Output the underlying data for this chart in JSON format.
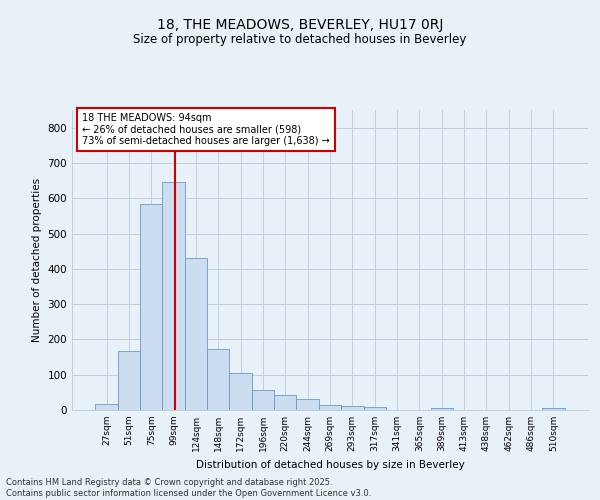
{
  "title_line1": "18, THE MEADOWS, BEVERLEY, HU17 0RJ",
  "title_line2": "Size of property relative to detached houses in Beverley",
  "xlabel": "Distribution of detached houses by size in Beverley",
  "ylabel": "Number of detached properties",
  "categories": [
    "27sqm",
    "51sqm",
    "75sqm",
    "99sqm",
    "124sqm",
    "148sqm",
    "172sqm",
    "196sqm",
    "220sqm",
    "244sqm",
    "269sqm",
    "293sqm",
    "317sqm",
    "341sqm",
    "365sqm",
    "389sqm",
    "413sqm",
    "438sqm",
    "462sqm",
    "486sqm",
    "510sqm"
  ],
  "values": [
    18,
    168,
    583,
    645,
    430,
    174,
    105,
    57,
    42,
    32,
    15,
    10,
    9,
    0,
    0,
    7,
    0,
    0,
    0,
    0,
    5
  ],
  "bar_color": "#ccddf0",
  "bar_edge_color": "#6699cc",
  "grid_color": "#c0d0e0",
  "background_color": "#e8f0f8",
  "annotation_text": "18 THE MEADOWS: 94sqm\n← 26% of detached houses are smaller (598)\n73% of semi-detached houses are larger (1,638) →",
  "annotation_box_color": "#ffffff",
  "annotation_box_edge_color": "#cc0000",
  "vline_color": "#cc0000",
  "vline_x": 3.08,
  "footer_line1": "Contains HM Land Registry data © Crown copyright and database right 2025.",
  "footer_line2": "Contains public sector information licensed under the Open Government Licence v3.0.",
  "ylim": [
    0,
    850
  ],
  "yticks": [
    0,
    100,
    200,
    300,
    400,
    500,
    600,
    700,
    800
  ]
}
